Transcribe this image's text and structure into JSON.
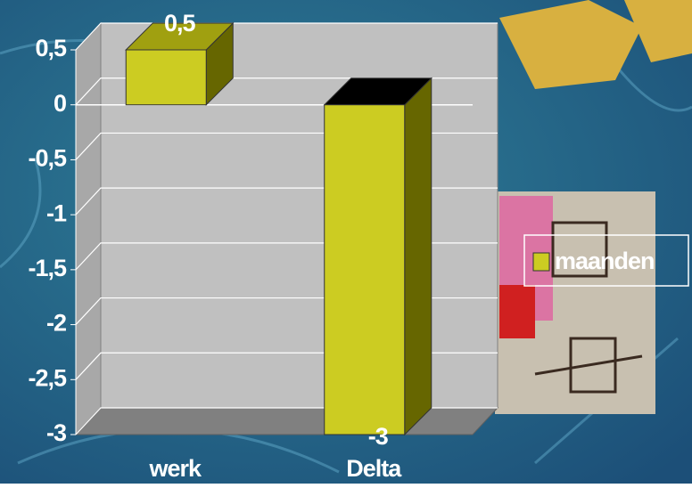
{
  "chart_data": {
    "type": "bar3d",
    "categories": [
      "werk",
      "Delta"
    ],
    "series": [
      {
        "name": "maanden",
        "color": "#cccc22",
        "values": [
          0.5,
          -3
        ],
        "value_labels": [
          "0,5",
          "-3"
        ]
      }
    ],
    "ylim": [
      -3,
      0.5
    ],
    "yticks": [
      {
        "value": 0.5,
        "label": "0,5"
      },
      0,
      {
        "value": -0.5,
        "label": "-0,5"
      },
      -1,
      {
        "value": -1.5,
        "label": "-1,5"
      },
      -2,
      {
        "value": -2.5,
        "label": "-2,5"
      },
      -3
    ],
    "grid": true,
    "legend": "right"
  }
}
